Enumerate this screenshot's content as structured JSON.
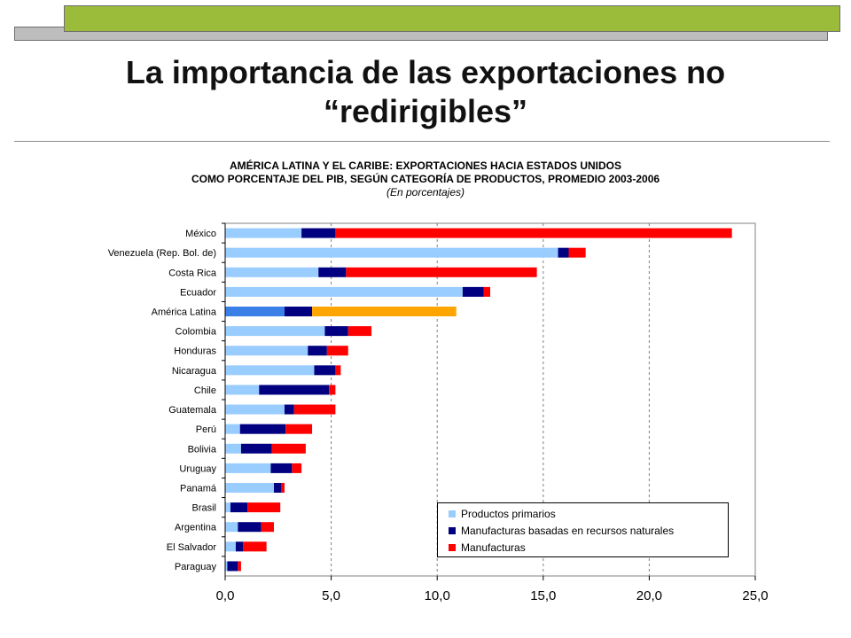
{
  "slide": {
    "title": "La importancia de las exportaciones no “redirigibles”"
  },
  "chart_heading": {
    "line1": "AMÉRICA LATINA Y EL CARIBE: EXPORTACIONES HACIA ESTADOS UNIDOS",
    "line2": "COMO PORCENTAJE DEL PIB, SEGÚN CATEGORÍA DE PRODUCTOS, PROMEDIO 2003-2006",
    "line3": "(En porcentajes)"
  },
  "chart_data": {
    "type": "bar",
    "orientation": "horizontal",
    "stacked": true,
    "title": "AMÉRICA LATINA Y EL CARIBE: EXPORTACIONES HACIA ESTADOS UNIDOS COMO PORCENTAJE DEL PIB, SEGÚN CATEGORÍA DE PRODUCTOS, PROMEDIO 2003-2006",
    "subtitle": "(En porcentajes)",
    "xlabel": "",
    "ylabel": "",
    "xlim": [
      0,
      25
    ],
    "xticks": [
      "0,0",
      "5,0",
      "10,0",
      "15,0",
      "20,0",
      "25,0"
    ],
    "xtick_values": [
      0,
      5,
      10,
      15,
      20,
      25
    ],
    "grid": "vertical dashed",
    "legend_position": "bottom-right",
    "categories": [
      "México",
      "Venezuela (Rep. Bol. de)",
      "Costa Rica",
      "Ecuador",
      "América Latina",
      "Colombia",
      "Honduras",
      "Nicaragua",
      "Chile",
      "Guatemala",
      "Perú",
      "Bolivia",
      "Uruguay",
      "Panamá",
      "Brasil",
      "Argentina",
      "El Salvador",
      "Paraguay"
    ],
    "series": [
      {
        "name": "Productos primarios",
        "color": "#99ccff",
        "values": [
          3.6,
          15.7,
          4.4,
          11.2,
          2.8,
          4.7,
          3.9,
          4.2,
          1.6,
          2.8,
          0.7,
          0.75,
          2.15,
          2.3,
          0.25,
          0.6,
          0.5,
          0.1
        ]
      },
      {
        "name": "Manufacturas basadas en recursos naturales",
        "color": "#000080",
        "values": [
          1.6,
          0.5,
          1.3,
          1.0,
          1.3,
          1.1,
          0.9,
          1.0,
          3.3,
          0.45,
          2.15,
          1.45,
          1.0,
          0.35,
          0.8,
          1.1,
          0.35,
          0.5
        ]
      },
      {
        "name": "Manufacturas",
        "color": "#ff0000",
        "values": [
          18.7,
          0.8,
          9.0,
          0.3,
          6.8,
          1.1,
          1.0,
          0.25,
          0.3,
          1.95,
          1.25,
          1.6,
          0.45,
          0.15,
          1.55,
          0.6,
          1.1,
          0.15
        ]
      }
    ],
    "highlight": {
      "category": "América Latina",
      "colors": [
        "#3a7fe6",
        "#000080",
        "#ffa500"
      ]
    }
  }
}
